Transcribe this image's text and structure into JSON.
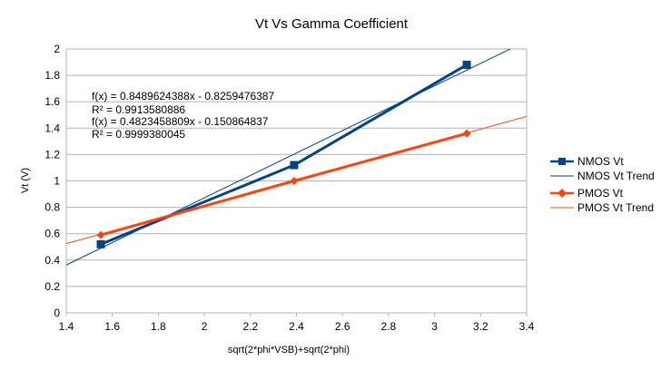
{
  "chart_data": {
    "type": "scatter",
    "title": "Vt Vs Gamma Coefficient",
    "xlabel": "sqrt(2*phi*VSB)+sqrt(2*phi)",
    "ylabel": "Vt (V)",
    "xlim": [
      1.4,
      3.4
    ],
    "ylim": [
      0,
      2
    ],
    "x_ticks": [
      "1.4",
      "1.6",
      "1.8",
      "2",
      "2.2",
      "2.4",
      "2.6",
      "2.8",
      "3",
      "3.2",
      "3.4"
    ],
    "y_ticks": [
      "0",
      "0.2",
      "0.4",
      "0.6",
      "0.8",
      "1",
      "1.2",
      "1.4",
      "1.6",
      "1.8",
      "2"
    ],
    "grid": "horizontal",
    "legend_position": "right",
    "series": [
      {
        "name": "NMOS Vt",
        "color": "#004586",
        "marker": "square",
        "x": [
          1.55,
          2.39,
          3.14
        ],
        "y": [
          0.52,
          1.12,
          1.88
        ]
      },
      {
        "name": "PMOS Vt",
        "color": "#ff420e",
        "marker": "diamond",
        "x": [
          1.55,
          2.39,
          3.14
        ],
        "y": [
          0.59,
          1.0,
          1.36
        ]
      }
    ],
    "trendlines": [
      {
        "name": "NMOS Vt Trend",
        "color": "#004586",
        "slope": 0.8489624388,
        "intercept": -0.8259476387,
        "equation": "f(x) = 0.8489624388x - 0.8259476387",
        "r2": "R² = 0.9913580886"
      },
      {
        "name": "PMOS Vt Trend",
        "color": "#ff420e",
        "slope": 0.4823458809,
        "intercept": -0.150864837,
        "equation": "f(x) = 0.4823458809x - 0.150864837",
        "r2": "R² = 0.9999380045"
      }
    ]
  }
}
